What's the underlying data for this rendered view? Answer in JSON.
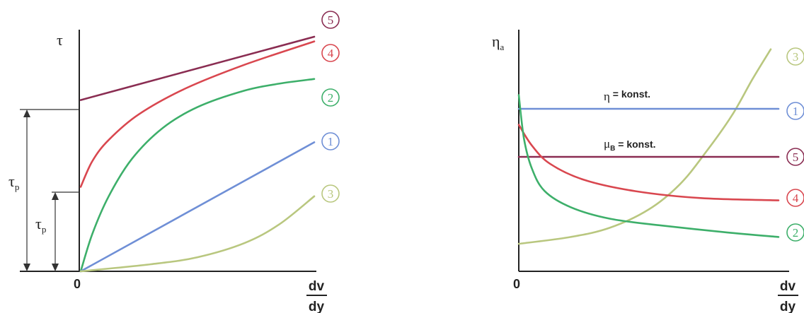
{
  "colors": {
    "1": "#6f8fd6",
    "2": "#3daf6a",
    "3": "#b9c77f",
    "4": "#d9474f",
    "5": "#8a2d52"
  },
  "chart_data": [
    {
      "type": "line",
      "title": "",
      "ylabel_main": "τ",
      "xlabel_num": "dv",
      "xlabel_den": "dy",
      "x_zero_label": "0",
      "yield_labels": [
        {
          "main": "τ",
          "sub": "p"
        },
        {
          "main": "τ",
          "sub": "p"
        }
      ],
      "series": [
        {
          "id": "5",
          "label": "5",
          "points": [
            [
              0,
              0.73
            ],
            [
              1,
              1.0
            ]
          ]
        },
        {
          "id": "4",
          "label": "4",
          "points": [
            [
              0,
              0.36
            ],
            [
              0.05,
              0.47
            ],
            [
              0.12,
              0.56
            ],
            [
              0.25,
              0.67
            ],
            [
              0.45,
              0.78
            ],
            [
              0.7,
              0.88
            ],
            [
              1,
              0.98
            ]
          ]
        },
        {
          "id": "2",
          "label": "2",
          "points": [
            [
              0,
              0.0
            ],
            [
              0.05,
              0.16
            ],
            [
              0.12,
              0.32
            ],
            [
              0.22,
              0.48
            ],
            [
              0.35,
              0.61
            ],
            [
              0.5,
              0.7
            ],
            [
              0.7,
              0.77
            ],
            [
              0.85,
              0.8
            ],
            [
              1,
              0.82
            ]
          ]
        },
        {
          "id": "1",
          "label": "1",
          "points": [
            [
              0,
              0.0
            ],
            [
              1,
              0.55
            ]
          ]
        },
        {
          "id": "3",
          "label": "3",
          "points": [
            [
              0,
              0.0
            ],
            [
              0.3,
              0.03
            ],
            [
              0.5,
              0.06
            ],
            [
              0.7,
              0.12
            ],
            [
              0.85,
              0.2
            ],
            [
              1,
              0.32
            ]
          ]
        }
      ]
    },
    {
      "type": "line",
      "title": "",
      "ylabel_main": "η",
      "ylabel_sub": "a",
      "xlabel_num": "dv",
      "xlabel_den": "dy",
      "x_zero_label": "0",
      "annotations": [
        {
          "main": "η",
          "sub": "",
          "rest": " = konst."
        },
        {
          "main": "μ",
          "sub": "B",
          "rest": " = konst."
        }
      ],
      "series": [
        {
          "id": "3",
          "label": "3",
          "points": [
            [
              0,
              0.12
            ],
            [
              0.2,
              0.15
            ],
            [
              0.35,
              0.19
            ],
            [
              0.5,
              0.27
            ],
            [
              0.62,
              0.38
            ],
            [
              0.72,
              0.52
            ],
            [
              0.82,
              0.68
            ],
            [
              0.9,
              0.84
            ],
            [
              0.97,
              0.97
            ]
          ]
        },
        {
          "id": "1",
          "label": "1",
          "points": [
            [
              0,
              0.71
            ],
            [
              1,
              0.71
            ]
          ]
        },
        {
          "id": "5",
          "label": "5",
          "points": [
            [
              0,
              0.5
            ],
            [
              1,
              0.5
            ]
          ]
        },
        {
          "id": "4",
          "label": "4",
          "points": [
            [
              0,
              0.64
            ],
            [
              0.05,
              0.55
            ],
            [
              0.12,
              0.47
            ],
            [
              0.25,
              0.4
            ],
            [
              0.45,
              0.35
            ],
            [
              0.7,
              0.32
            ],
            [
              1,
              0.31
            ]
          ]
        },
        {
          "id": "2",
          "label": "2",
          "points": [
            [
              0,
              0.77
            ],
            [
              0.02,
              0.58
            ],
            [
              0.05,
              0.45
            ],
            [
              0.1,
              0.35
            ],
            [
              0.2,
              0.28
            ],
            [
              0.35,
              0.23
            ],
            [
              0.55,
              0.2
            ],
            [
              0.8,
              0.17
            ],
            [
              1,
              0.15
            ]
          ]
        }
      ]
    }
  ]
}
